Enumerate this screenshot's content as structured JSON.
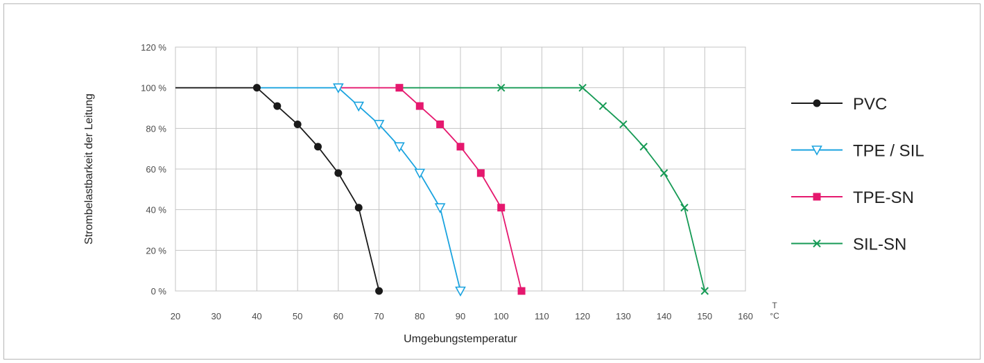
{
  "chart_data": {
    "type": "line",
    "title": "",
    "xlabel": "Umgebungstemperatur",
    "ylabel": "Strombelastbarkeit der Leitung",
    "x_unit_top": "T",
    "x_unit_bottom": "°C",
    "xlim": [
      20,
      160
    ],
    "ylim": [
      0,
      120
    ],
    "x_ticks": [
      20,
      30,
      40,
      50,
      60,
      70,
      80,
      90,
      100,
      110,
      120,
      130,
      140,
      150,
      160
    ],
    "y_ticks": [
      0,
      20,
      40,
      60,
      80,
      100,
      120
    ],
    "x_tick_labels": [
      "20",
      "30",
      "40",
      "50",
      "60",
      "70",
      "80",
      "90",
      "100",
      "110",
      "120",
      "130",
      "140",
      "150",
      "160"
    ],
    "y_tick_labels": [
      "0 %",
      "20 %",
      "40 %",
      "60 %",
      "80 %",
      "100 %",
      "120 %"
    ],
    "grid": true,
    "legend_position": "right",
    "series": [
      {
        "name": "PVC",
        "color": "#1a1a1a",
        "marker": "circle",
        "line_start": 20,
        "x": [
          40,
          45,
          50,
          55,
          60,
          65,
          70
        ],
        "y": [
          100,
          91,
          82,
          71,
          58,
          41,
          0
        ]
      },
      {
        "name": "TPE / SIL",
        "color": "#1aa3df",
        "marker": "triangle-down-open",
        "line_start": 40,
        "x": [
          60,
          65,
          70,
          75,
          80,
          85,
          90
        ],
        "y": [
          100,
          91,
          82,
          71,
          58,
          41,
          0
        ]
      },
      {
        "name": "TPE-SN",
        "color": "#e5186e",
        "marker": "square",
        "line_start": 60,
        "x": [
          75,
          80,
          85,
          90,
          95,
          100,
          105
        ],
        "y": [
          100,
          91,
          82,
          71,
          58,
          41,
          0
        ]
      },
      {
        "name": "SIL-SN",
        "color": "#169a55",
        "marker": "x",
        "line_start": 75,
        "x": [
          100,
          120,
          125,
          130,
          135,
          140,
          145,
          150
        ],
        "y": [
          100,
          100,
          91,
          82,
          71,
          58,
          41,
          0
        ]
      }
    ]
  }
}
